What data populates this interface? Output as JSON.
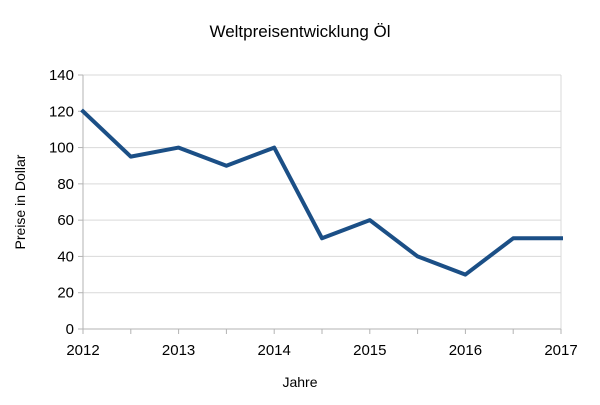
{
  "chart_data": {
    "type": "line",
    "title": "Weltpreisentwicklung Öl",
    "xlabel": "Jahre",
    "ylabel": "Preise in Dollar",
    "x": [
      2012,
      2012.5,
      2013,
      2013.5,
      2014,
      2014.5,
      2015,
      2015.5,
      2016,
      2016.5,
      2017
    ],
    "values": [
      120,
      95,
      100,
      90,
      100,
      50,
      60,
      40,
      30,
      50,
      50
    ],
    "xlim": [
      2012,
      2017
    ],
    "ylim": [
      0,
      140
    ],
    "ytick_step": 20,
    "xtick_minor_step": 0.5,
    "xtick_values": [
      2012,
      2013,
      2014,
      2015,
      2016,
      2017
    ],
    "xtick_labels": [
      "2012",
      "2013",
      "2014",
      "2015",
      "2016",
      "2017"
    ],
    "ytick_labels": [
      "0",
      "20",
      "40",
      "60",
      "80",
      "100",
      "120",
      "140"
    ],
    "grid": "horizontal",
    "legend": "none",
    "line_width": 4,
    "colors": {
      "line": "#1b4f86",
      "grid": "#d9d9d9",
      "axis": "#b3b3b3",
      "text": "#000000",
      "background": "#ffffff"
    }
  }
}
